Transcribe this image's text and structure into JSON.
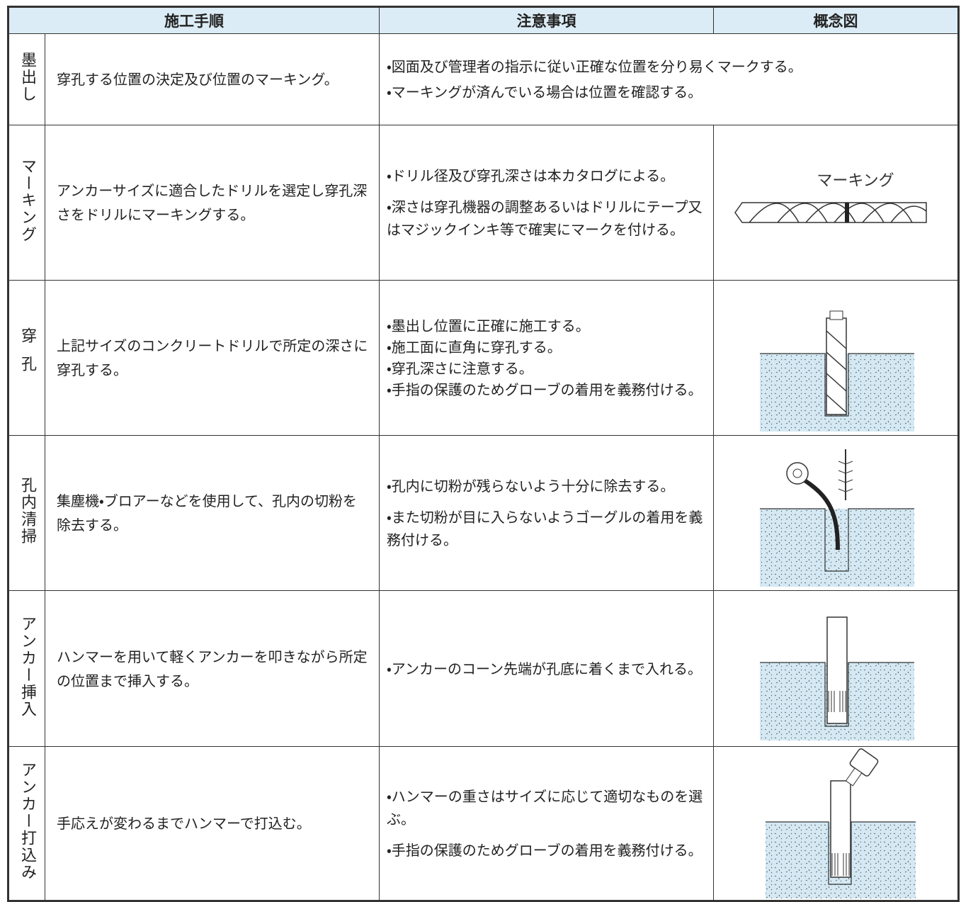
{
  "header": {
    "columns": [
      "施工手順",
      "注意事項",
      "概念図"
    ]
  },
  "rows": [
    {
      "step": "墨出し",
      "procedure": "穿孔する位置の決定及び位置のマーキング。",
      "notes": [
        "・図面及び管理者の指示に従い正確な位置を分り易くマークする。",
        "・マーキングが済んでいる場合は位置を確認する。"
      ]
    },
    {
      "step": "マーキング",
      "procedure": "アンカーサイズに適合したドリルを選定し穿孔深さをドリルにマーキングする。",
      "notes": [
        "・ドリル径及び穿孔深さは本カタログによる。",
        "・深さは穿孔機器の調整あるいはドリルにテープ又はマジックインキ等で確実にマークを付ける。"
      ],
      "figure_label": "マーキング"
    },
    {
      "step": "穿孔",
      "procedure": "上記サイズのコンクリートドリルで所定の深さに穿孔する。",
      "notes": [
        "・墨出し位置に正確に施工する。",
        "・施工面に直角に穿孔する。",
        "・穿孔深さに注意する。",
        "・手指の保護のためグローブの着用を義務付ける。"
      ]
    },
    {
      "step": "孔内清掃",
      "procedure": "集塵機・ブロアーなどを使用して、孔内の切粉を除去する。",
      "notes": [
        "・孔内に切粉が残らないよう十分に除去する。",
        "・また切粉が目に入らないようゴーグルの着用を義務付ける。"
      ]
    },
    {
      "step": "アンカー挿入",
      "procedure": "ハンマーを用いて軽くアンカーを叩きながら所定の位置まで挿入する。",
      "notes": [
        "・アンカーのコーン先端が孔底に着くまで入れる。"
      ]
    },
    {
      "step": "アンカー打込み",
      "procedure": "手応えが変わるまでハンマーで打込む。",
      "notes": [
        "・ハンマーの重さはサイズに応じて適切なものを選ぶ。",
        "・手指の保護のためグローブの着用を義務付ける。"
      ]
    }
  ]
}
